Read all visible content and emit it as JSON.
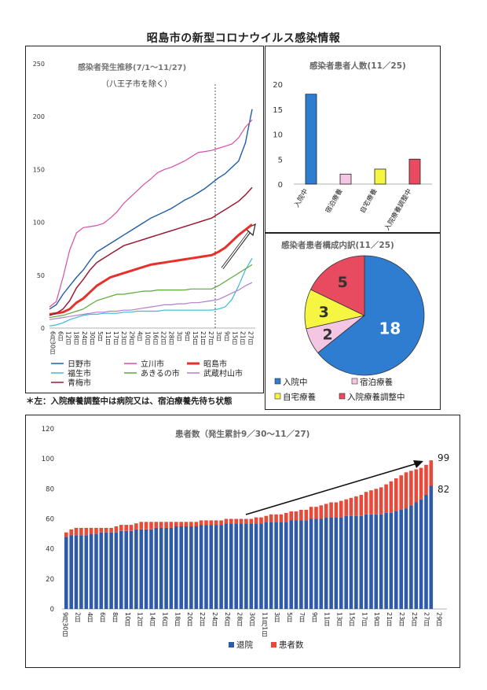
{
  "page": {
    "title": "昭島市の新型コロナウイルス感染情報",
    "footnote": "＊左：入院療養調整中は病院又は、宿泊療養先待ち状態"
  },
  "colors": {
    "hino": "#1f5da8",
    "tachikawa": "#d64fa3",
    "akishima": "#e8302a",
    "fussa": "#3fb8d8",
    "akiruno": "#5aa83c",
    "musashimurayama": "#b07fd0",
    "ome": "#9a1c34",
    "hospitalized": "#2e7dd1",
    "lodging": "#f4c6e4",
    "home": "#f5f542",
    "adjusting": "#e84a5f",
    "discharged": "#2e5aa8",
    "patients": "#e84a3a"
  },
  "chart_data": [
    {
      "type": "line",
      "title": "感染者発生推移(7/1～11/27)",
      "subtitle": "（八王子市を除く）",
      "ylim": [
        0,
        250
      ],
      "yticks": [
        0,
        50,
        100,
        150,
        200,
        250
      ],
      "xticks": [
        "6月30日",
        "6日",
        "12日",
        "18日",
        "24日",
        "30日",
        "5日",
        "11日",
        "17日",
        "23日",
        "29日",
        "4日",
        "10日",
        "16日",
        "22日",
        "28日",
        "3日",
        "9日",
        "15日",
        "21日",
        "27日",
        "3日",
        "9日",
        "15日",
        "21日",
        "27日"
      ],
      "x": [
        0,
        5,
        10,
        15,
        20,
        25,
        30,
        35,
        40,
        45,
        50,
        55,
        60,
        65,
        70,
        75,
        80,
        85,
        90,
        95,
        100,
        105,
        110,
        115,
        120,
        125,
        130,
        135,
        140,
        145,
        150
      ],
      "series": [
        {
          "name": "日野市",
          "color": "hino",
          "width": 1.4,
          "values": [
            18,
            22,
            32,
            40,
            48,
            55,
            64,
            72,
            76,
            80,
            84,
            88,
            92,
            96,
            100,
            104,
            107,
            110,
            113,
            117,
            121,
            124,
            128,
            132,
            137,
            142,
            146,
            152,
            158,
            175,
            207
          ]
        },
        {
          "name": "立川市",
          "color": "tachikawa",
          "width": 1.2,
          "values": [
            20,
            25,
            48,
            74,
            90,
            95,
            96,
            97,
            99,
            104,
            110,
            118,
            124,
            130,
            136,
            141,
            147,
            150,
            152,
            155,
            158,
            162,
            166,
            167,
            168,
            170,
            172,
            174,
            180,
            190,
            197
          ]
        },
        {
          "name": "昭島市",
          "color": "akishima",
          "width": 3,
          "values": [
            13,
            14,
            15,
            18,
            24,
            28,
            34,
            40,
            44,
            48,
            50,
            52,
            54,
            56,
            58,
            60,
            61,
            62,
            63,
            64,
            65,
            66,
            67,
            68,
            69,
            72,
            76,
            82,
            88,
            93,
            98
          ]
        },
        {
          "name": "福生市",
          "color": "fussa",
          "width": 1.2,
          "values": [
            2,
            3,
            5,
            8,
            10,
            12,
            13,
            13,
            14,
            14,
            14,
            15,
            15,
            16,
            16,
            16,
            16,
            17,
            17,
            17,
            17,
            17,
            17,
            17,
            17,
            18,
            20,
            27,
            40,
            55,
            66
          ]
        },
        {
          "name": "あきるの市",
          "color": "akiruno",
          "width": 1.2,
          "values": [
            10,
            11,
            12,
            14,
            16,
            18,
            22,
            26,
            28,
            30,
            32,
            32,
            33,
            34,
            35,
            35,
            36,
            36,
            36,
            36,
            36,
            37,
            37,
            37,
            37,
            40,
            44,
            48,
            52,
            56,
            60
          ]
        },
        {
          "name": "武蔵村山市",
          "color": "musashimurayama",
          "width": 1.2,
          "values": [
            8,
            9,
            10,
            11,
            12,
            13,
            14,
            15,
            15,
            16,
            16,
            17,
            17,
            18,
            19,
            20,
            21,
            22,
            22,
            23,
            23,
            24,
            24,
            25,
            26,
            27,
            30,
            33,
            36,
            40,
            43
          ]
        },
        {
          "name": "青梅市",
          "color": "ome",
          "width": 1.5,
          "values": [
            12,
            14,
            18,
            26,
            38,
            46,
            55,
            62,
            66,
            70,
            74,
            78,
            80,
            82,
            84,
            86,
            88,
            90,
            92,
            94,
            96,
            98,
            100,
            102,
            104,
            108,
            112,
            116,
            120,
            126,
            133
          ]
        }
      ]
    },
    {
      "type": "bar",
      "title": "感染者患者人数(11／25)",
      "categories": [
        "入院中",
        "宿泊療養",
        "自宅療養",
        "入院療養調整中"
      ],
      "values": [
        18,
        2,
        3,
        5
      ],
      "ylim": [
        0,
        20
      ],
      "yticks": [
        0,
        5,
        10,
        15,
        20
      ]
    },
    {
      "type": "pie",
      "title": "感染者患者構成内訳(11／25)",
      "categories": [
        "入院中",
        "宿泊療養",
        "自宅療養",
        "入院療養調整中"
      ],
      "values": [
        18,
        2,
        3,
        5
      ]
    },
    {
      "type": "bar",
      "stacked": true,
      "title": "患者数（発生累計9／30～11／27)",
      "ylim": [
        0,
        120
      ],
      "yticks": [
        0,
        20,
        40,
        60,
        80,
        100,
        120
      ],
      "xticks": [
        "9月30日",
        "2日",
        "4日",
        "6日",
        "8日",
        "10日",
        "12日",
        "14日",
        "16日",
        "18日",
        "20日",
        "22日",
        "24日",
        "26日",
        "28日",
        "30日",
        "11月1日",
        "3日",
        "5日",
        "7日",
        "9日",
        "11日",
        "13日",
        "15日",
        "17日",
        "19日",
        "21日",
        "23日",
        "25日",
        "27日",
        "29日"
      ],
      "annotations": [
        "99",
        "82"
      ],
      "series": [
        {
          "name": "退院",
          "color": "discharged",
          "values": [
            48,
            49,
            49,
            49,
            49,
            50,
            50,
            51,
            51,
            51,
            51,
            52,
            52,
            52,
            53,
            53,
            53,
            53,
            54,
            54,
            54,
            54,
            55,
            55,
            55,
            55,
            55,
            56,
            56,
            56,
            56,
            56,
            57,
            57,
            57,
            57,
            57,
            57,
            57,
            57,
            58,
            58,
            58,
            58,
            58,
            59,
            59,
            59,
            59,
            60,
            60,
            60,
            61,
            61,
            61,
            61,
            62,
            62,
            62,
            62,
            63,
            63,
            63,
            63,
            64,
            64,
            65,
            66,
            67,
            69,
            71,
            73,
            76,
            82
          ]
        },
        {
          "name": "患者数",
          "color": "patients",
          "values": [
            3,
            4,
            5,
            5,
            5,
            4,
            4,
            3,
            3,
            3,
            4,
            4,
            4,
            4,
            4,
            5,
            5,
            5,
            4,
            4,
            4,
            4,
            3,
            3,
            3,
            3,
            3,
            3,
            3,
            3,
            3,
            3,
            3,
            3,
            3,
            3,
            3,
            3,
            4,
            4,
            4,
            5,
            5,
            5,
            6,
            6,
            6,
            7,
            7,
            8,
            8,
            9,
            9,
            10,
            10,
            11,
            11,
            12,
            13,
            14,
            15,
            16,
            17,
            18,
            19,
            21,
            22,
            23,
            24,
            23,
            22,
            21,
            20,
            17
          ]
        }
      ]
    }
  ]
}
